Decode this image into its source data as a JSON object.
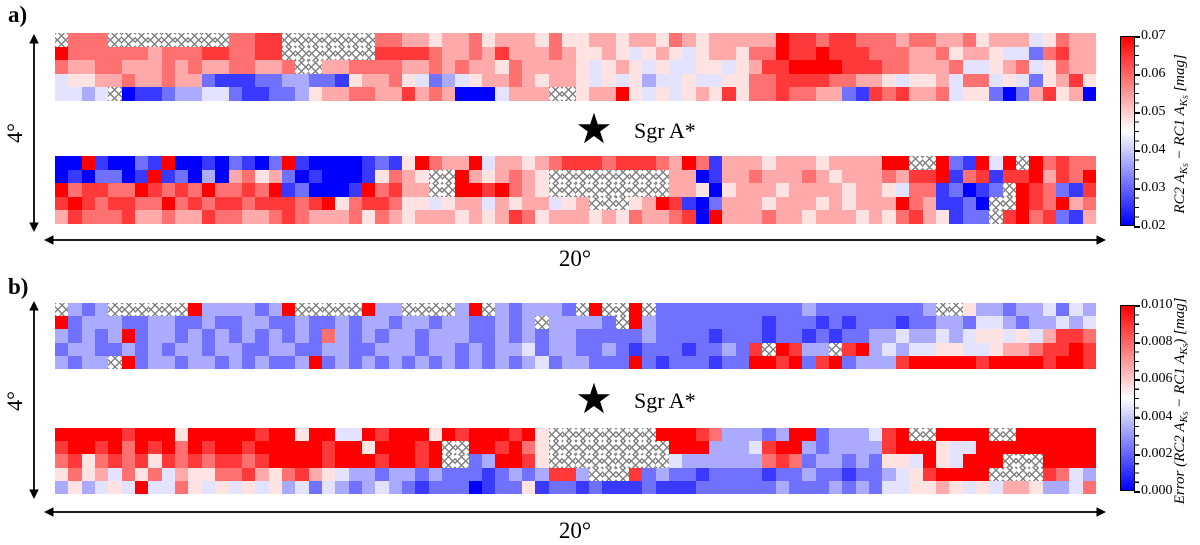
{
  "figure": {
    "description": "Two-panel heatmap figure of the Galactic plane around Sgr A*",
    "masked_meaning": "hatched cells = masked / no data",
    "hatch_color": "#828282"
  },
  "chart_data": [
    {
      "panel": "a",
      "panel_label": "a)",
      "type": "heatmap",
      "quantity": "RC2 A_KS − RC1 A_KS",
      "units": "mag",
      "colormap": "blue-white-red",
      "colormap_colors": {
        "low": "#0000ff",
        "mid": "#ffffff",
        "high": "#ff0000"
      },
      "vmin": 0.02,
      "vmax": 0.07,
      "colorbar_ticks": [
        "0.07",
        "0.06",
        "0.05",
        "0.04",
        "0.03",
        "0.02"
      ],
      "colorbar_label_tokens": [
        {
          "t": "RC2 "
        },
        {
          "t": "A"
        },
        {
          "t": "K",
          "sub": 1
        },
        {
          "t": "S",
          "sub": 2
        },
        {
          "t": " − "
        },
        {
          "t": "RC1 "
        },
        {
          "t": "A"
        },
        {
          "t": "K",
          "sub": 1
        },
        {
          "t": "S",
          "sub": 2
        },
        {
          "t": " [mag]"
        }
      ],
      "x_extent_label": "20°",
      "y_extent_label": "4°",
      "marker": {
        "symbol": "★",
        "label": "Sgr A*"
      },
      "grid_columns": 78,
      "cell_encoding": "digit d maps to value = vmin + (d/9)·(vmax−vmin); X = masked (hatched)",
      "strips": {
        "upper": [
          "X777XXXXXXXXX7788XXXXXXX776656675666575566566576566666988788777677667566645766",
          "97777776777887788XXXXXXX888876676866676556545654566577988988877766756654427866",
          "766776667676677667XX6677776676766576666545654544554568899998887766674456745766",
          "455667667662111223322156675423456676566545453445445577888877665455647745425685",
          "4434X01123344211223566776686760004666XX566954545658577877662187866745520268560"
        ],
        "lower": [
          "0091002190010210291000012159766946656788878887697166656665666699XX921949X97877",
          "0102201912030675620100015765XX9656765XXXXXXXXX66016676667656667688917818896879",
          "9788779878797787912000197866XX9989765XXXXXXXXX6650566656666566547712012X987218",
          "8987887797878878887895788755456646566456XXX569810266656665656669761120XX987967",
          "6877786676687766787666757656665656875666565766780966676656665657865122X8978216"
        ]
      }
    },
    {
      "panel": "b",
      "panel_label": "b)",
      "type": "heatmap",
      "quantity": "Error (RC2 A_KS − RC1 A_KS)",
      "units": "mag",
      "colormap": "blue-white-red",
      "colormap_colors": {
        "low": "#0000ff",
        "mid": "#ffffff",
        "high": "#ff0000"
      },
      "vmin": 0.0,
      "vmax": 0.01,
      "colorbar_ticks": [
        "0.010",
        "0.008",
        "0.006",
        "0.004",
        "0.002",
        "0.000"
      ],
      "colorbar_label_tokens": [
        {
          "t": "Error ("
        },
        {
          "t": "RC2 "
        },
        {
          "t": "A"
        },
        {
          "t": "K",
          "sub": 1
        },
        {
          "t": "S",
          "sub": 2
        },
        {
          "t": " − "
        },
        {
          "t": "RC1 "
        },
        {
          "t": "A"
        },
        {
          "t": "K",
          "sub": 1
        },
        {
          "t": "S",
          "sub": 2
        },
        {
          "t": ") [mag]"
        }
      ],
      "x_extent_label": "20°",
      "y_extent_label": "4°",
      "marker": {
        "symbol": "★",
        "label": "Sgr A*"
      },
      "grid_columns": 78,
      "cell_encoding": "digit d maps to value = vmin + (d/9)·(vmax−vmin); X = masked (hatched)",
      "strips": {
        "upper": [
          "X323XXXXXX93333239XXXXX933XXXX39X323332X9XX9X222222222223222222223XX5332334243",
          "923332233223223322322323323323322323X33332X93222222221222121222122332443233434",
          "323239233232323232327323233233322323233222223222212221221212233433434554546887",
          "23322323233233223322332233323323233423322321222122328X9833X8934344554456678898",
          "3233X9233233232322392323232323232323423322292122212299892892333899999899998998"
        ],
        "lower": [
          "9999989995999998995994498999598999895XXXXXXXX9998733323992333489XX9999XX999999",
          "89989798979899899999899599989XX998975XXXXXXXXX99933348993233338999544999999999",
          "78578785878788789999899989989XX239985XXXXXXXXX4333333787233232554954999XXX9999",
          "5756475746557786578654332332322212323883XXX823221222212232212234589999XXXX8743",
          "353454944754545453424323432122201225122121112111222222322232324455654546653347"
        ]
      }
    }
  ]
}
